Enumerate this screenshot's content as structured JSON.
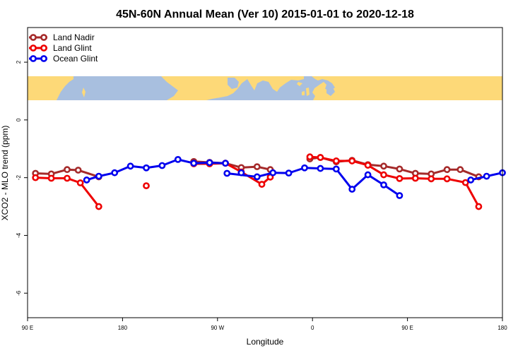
{
  "chart_data": {
    "type": "line",
    "title": "45N-60N Annual Mean (Ver 10)   2015-01-01 to 2020-12-18",
    "xlabel": "Longitude",
    "ylabel": "XCO2 - MLO trend (ppm)",
    "xlim": [
      90,
      540
    ],
    "ylim": [
      -6.85,
      3.2
    ],
    "x_ticks": [
      {
        "value": 90,
        "label": "90 E"
      },
      {
        "value": 180,
        "label": "180"
      },
      {
        "value": 270,
        "label": "90 W"
      },
      {
        "value": 360,
        "label": "0"
      },
      {
        "value": 450,
        "label": "90 E"
      },
      {
        "value": 540,
        "label": "180"
      }
    ],
    "y_ticks": [
      {
        "value": 2,
        "label": "2"
      },
      {
        "value": 0,
        "label": "0"
      },
      {
        "value": -2,
        "label": "-2"
      },
      {
        "value": -4,
        "label": "-4"
      },
      {
        "value": -6,
        "label": "-6"
      }
    ],
    "map_strip": {
      "y_top": 1.5,
      "y_bottom": 0.68,
      "land_color": "#fdd978",
      "ocean_color": "#a8bfdf"
    },
    "legend_position": "top-left",
    "series": [
      {
        "name": "Land Nadir",
        "color": "#a52a2a",
        "segments": [
          [
            [
              97.5,
              -1.85
            ],
            [
              112.5,
              -1.87
            ],
            [
              127.5,
              -1.72
            ],
            [
              138,
              -1.74
            ],
            [
              157.5,
              -1.97
            ]
          ],
          [
            [
              247.5,
              -1.44
            ],
            [
              262.5,
              -1.47
            ],
            [
              277.5,
              -1.5
            ],
            [
              292.5,
              -1.65
            ],
            [
              307.5,
              -1.62
            ],
            [
              320,
              -1.72
            ]
          ],
          [
            [
              357.5,
              -1.35
            ],
            [
              367.5,
              -1.3
            ],
            [
              382.5,
              -1.45
            ],
            [
              397.5,
              -1.4
            ],
            [
              412.5,
              -1.55
            ],
            [
              427.5,
              -1.6
            ],
            [
              442.5,
              -1.7
            ],
            [
              457.5,
              -1.85
            ],
            [
              472.5,
              -1.87
            ],
            [
              487.5,
              -1.72
            ],
            [
              500,
              -1.72
            ],
            [
              517.5,
              -1.97
            ]
          ]
        ]
      },
      {
        "name": "Land Glint",
        "color": "#ee0000",
        "segments": [
          [
            [
              97.5,
              -2.0
            ],
            [
              112.5,
              -2.02
            ],
            [
              127.5,
              -2.02
            ],
            [
              140,
              -2.18
            ],
            [
              157.5,
              -3.0
            ]
          ],
          [
            [
              202.5,
              -2.28
            ]
          ],
          [
            [
              247.5,
              -1.52
            ],
            [
              262.5,
              -1.52
            ],
            [
              277.5,
              -1.5
            ],
            [
              292.5,
              -1.8
            ],
            [
              312,
              -2.23
            ],
            [
              320,
              -1.98
            ]
          ],
          [
            [
              357.5,
              -1.28
            ],
            [
              367.5,
              -1.3
            ],
            [
              382.5,
              -1.42
            ],
            [
              397.5,
              -1.42
            ],
            [
              412.5,
              -1.57
            ],
            [
              427.5,
              -1.9
            ],
            [
              442.5,
              -2.03
            ],
            [
              457.5,
              -2.02
            ],
            [
              472.5,
              -2.04
            ],
            [
              487.5,
              -2.04
            ],
            [
              505,
              -2.17
            ],
            [
              517.5,
              -3.0
            ]
          ]
        ]
      },
      {
        "name": "Ocean Glint",
        "color": "#0000ee",
        "segments": [
          [
            [
              146,
              -2.08
            ],
            [
              157.5,
              -1.95
            ],
            [
              172.5,
              -1.83
            ],
            [
              187.5,
              -1.6
            ],
            [
              202.5,
              -1.66
            ],
            [
              217.5,
              -1.58
            ],
            [
              232.5,
              -1.37
            ],
            [
              247.5,
              -1.5
            ],
            [
              262.5,
              -1.48
            ],
            [
              277.5,
              -1.5
            ]
          ],
          [
            [
              292.5,
              -1.83
            ]
          ],
          [
            [
              279,
              -1.85
            ],
            [
              307.5,
              -1.97
            ],
            [
              322.5,
              -1.83
            ],
            [
              337.5,
              -1.84
            ],
            [
              352.5,
              -1.66
            ],
            [
              367.5,
              -1.68
            ],
            [
              382.5,
              -1.7
            ],
            [
              397.5,
              -2.4
            ],
            [
              412.5,
              -1.9
            ],
            [
              427.5,
              -2.25
            ],
            [
              442.5,
              -2.62
            ]
          ],
          [
            [
              510,
              -2.08
            ],
            [
              525,
              -1.95
            ],
            [
              540,
              -1.83
            ]
          ]
        ]
      }
    ]
  }
}
